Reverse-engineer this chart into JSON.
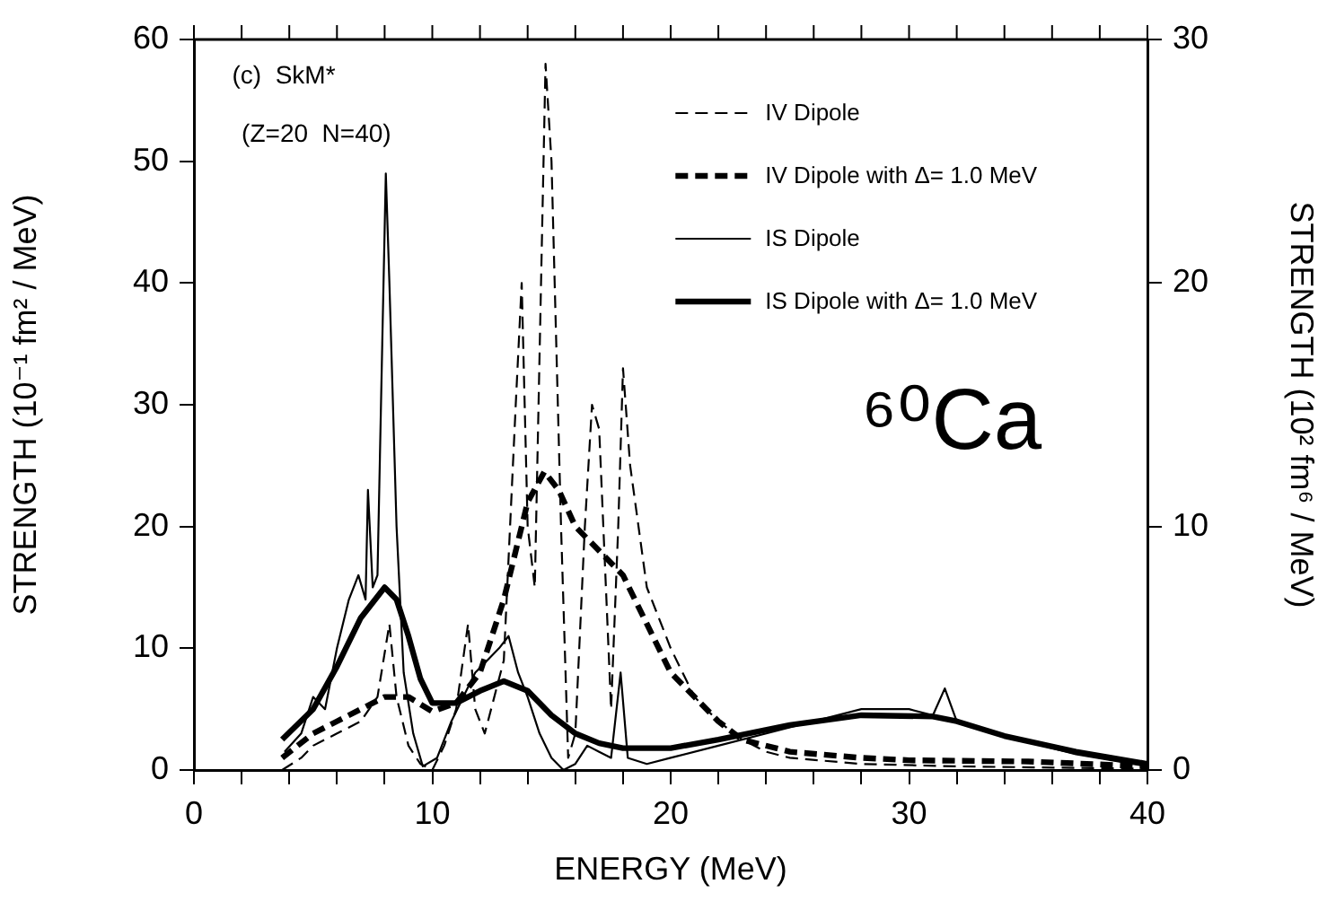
{
  "chart_data": {
    "type": "line",
    "xlabel": "ENERGY (MeV)",
    "ylabel": "STRENGTH (10⁻¹ fm² / MeV)",
    "y2label": "STRENGTH (10² fm⁶ / MeV)",
    "annotations": [
      "(c)  SkM*",
      "(Z=20  N=40)",
      "⁶⁰Ca"
    ],
    "xlim": [
      0,
      40
    ],
    "xticks": [
      0,
      {
        "value": 2,
        "label": null
      },
      {
        "value": 4,
        "label": null
      },
      {
        "value": 6,
        "label": null
      },
      {
        "value": 8,
        "label": null
      },
      10,
      {
        "value": 12,
        "label": null
      },
      {
        "value": 14,
        "label": null
      },
      {
        "value": 16,
        "label": null
      },
      {
        "value": 18,
        "label": null
      },
      20,
      {
        "value": 22,
        "label": null
      },
      {
        "value": 24,
        "label": null
      },
      {
        "value": 26,
        "label": null
      },
      {
        "value": 28,
        "label": null
      },
      30,
      {
        "value": 32,
        "label": null
      },
      {
        "value": 34,
        "label": null
      },
      {
        "value": 36,
        "label": null
      },
      {
        "value": 38,
        "label": null
      },
      40
    ],
    "ylim": [
      0,
      60
    ],
    "yticks": [
      0,
      10,
      20,
      30,
      40,
      50,
      60
    ],
    "y2lim": [
      0,
      30
    ],
    "y2ticks": [
      0,
      10,
      20,
      30
    ],
    "grid": false,
    "legend": "top right",
    "marker": "none",
    "series": [
      {
        "name": "IV Dipole",
        "color": "#000000",
        "line_style": "dashed",
        "x": [
          3.7,
          4.5,
          5,
          6,
          7,
          7.7,
          8.2,
          8.5,
          9,
          9.5,
          10,
          10.5,
          11,
          11.5,
          11.8,
          12.2,
          12.6,
          13,
          13.5,
          13.75,
          14,
          14.3,
          14.75,
          15,
          15.4,
          15.7,
          16,
          16.4,
          16.7,
          17,
          17.5,
          17.8,
          18,
          18.3,
          19,
          20,
          21,
          22,
          23,
          24,
          25,
          28,
          32,
          40
        ],
        "values": [
          0,
          1,
          2,
          3,
          4,
          6,
          12,
          6,
          2,
          0.5,
          0,
          2,
          5,
          12,
          5,
          3,
          6,
          9,
          30,
          40,
          20,
          15,
          58,
          50,
          20,
          1,
          3,
          20,
          30,
          28,
          5,
          20,
          33,
          25,
          15,
          10,
          6,
          4,
          2.5,
          1.5,
          1,
          0.5,
          0.3,
          0.1
        ]
      },
      {
        "name": "IV Dipole with Δ= 1.0 MeV",
        "color": "#000000",
        "line_style": "dashed",
        "x": [
          3.7,
          5,
          6,
          7,
          8,
          9,
          10,
          11,
          12,
          13,
          14,
          14.7,
          15.3,
          16,
          17,
          18,
          19,
          20,
          21,
          22,
          23,
          25,
          28,
          30,
          35,
          40
        ],
        "values": [
          1,
          3,
          4,
          5,
          6,
          6,
          4.8,
          5.5,
          8,
          14,
          22,
          24.5,
          23,
          20,
          18,
          16,
          12,
          8,
          6,
          4,
          2.5,
          1.5,
          1,
          0.8,
          0.7,
          0.3
        ]
      },
      {
        "name": "IS Dipole",
        "color": "#000000",
        "line_style": "solid",
        "x": [
          3.8,
          4.5,
          5,
          5.5,
          6,
          6.5,
          6.9,
          7.2,
          7.3,
          7.5,
          7.7,
          7.9,
          8.05,
          8.2,
          8.5,
          8.8,
          9.2,
          9.6,
          10.2,
          10.8,
          11.3,
          11.8,
          12.3,
          12.8,
          13.2,
          13.6,
          14,
          14.5,
          15,
          15.5,
          16,
          16.5,
          17,
          17.5,
          17.9,
          18.2,
          19,
          20,
          22,
          25,
          28,
          30,
          31,
          31.5,
          32,
          34,
          37,
          40
        ],
        "values": [
          1.5,
          3,
          6,
          5,
          10,
          14,
          16,
          14,
          23,
          15,
          16,
          35,
          49,
          40,
          20,
          8,
          3,
          0.3,
          1,
          4,
          6,
          8,
          9,
          10,
          11,
          8,
          6,
          3,
          1,
          0,
          0.5,
          2,
          1.5,
          1,
          8,
          1,
          0.5,
          1,
          2,
          3.5,
          5,
          5,
          4.5,
          6.7,
          4,
          2.8,
          1.3,
          0.3
        ]
      },
      {
        "name": "IS Dipole with Δ= 1.0 MeV",
        "color": "#000000",
        "line_style": "solid",
        "x": [
          3.7,
          5,
          6,
          7,
          8,
          8.5,
          9,
          9.5,
          10,
          11,
          12,
          13,
          14,
          15,
          16,
          17,
          18,
          20,
          22,
          25,
          28,
          31,
          32,
          34,
          37,
          40
        ],
        "values": [
          2.5,
          5,
          8.5,
          12.5,
          15,
          14,
          11,
          7.5,
          5.5,
          5.5,
          6.5,
          7.3,
          6.5,
          4.5,
          3,
          2.2,
          1.8,
          1.8,
          2.5,
          3.7,
          4.5,
          4.4,
          4,
          2.8,
          1.5,
          0.5
        ]
      }
    ]
  }
}
